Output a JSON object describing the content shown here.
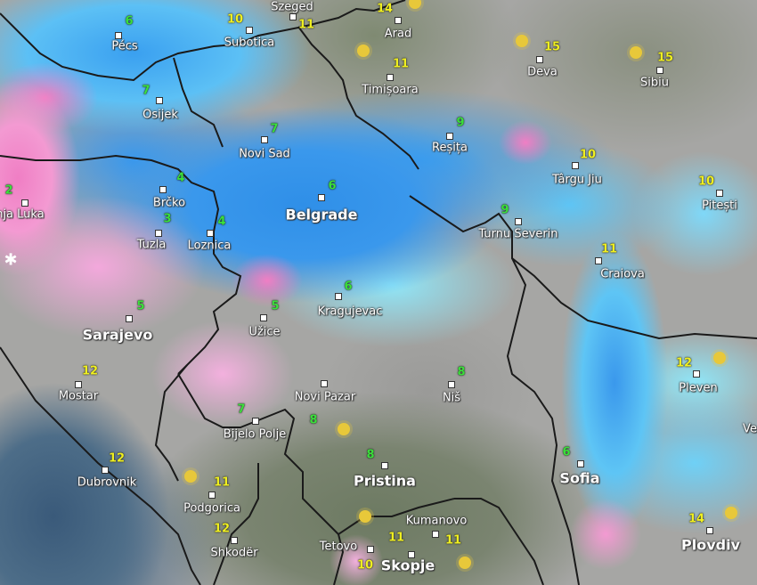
{
  "map": {
    "type": "weather radar / temperature map"
  },
  "cities": [
    {
      "name": "Pécs",
      "temp": "6"
    },
    {
      "name": "Subotica",
      "temp": "10"
    },
    {
      "name": "Szeged",
      "temp": "11"
    },
    {
      "name": "Arad",
      "temp": "14"
    },
    {
      "name": "Timișoara",
      "temp": "11"
    },
    {
      "name": "Deva",
      "temp": "15"
    },
    {
      "name": "Sibiu",
      "temp": "15"
    },
    {
      "name": "Osijek",
      "temp": "7"
    },
    {
      "name": "Novi Sad",
      "temp": "7"
    },
    {
      "name": "Reșița",
      "temp": "9"
    },
    {
      "name": "Târgu Jiu",
      "temp": "10"
    },
    {
      "name": "Pitești",
      "temp": "10"
    },
    {
      "name": "Brčko",
      "temp": "4"
    },
    {
      "name": "Banja Luka",
      "temp": "2"
    },
    {
      "name": "Belgrade",
      "temp": "6"
    },
    {
      "name": "Turnu Severin",
      "temp": "9"
    },
    {
      "name": "Tuzla",
      "temp": "3"
    },
    {
      "name": "Loznica",
      "temp": "4"
    },
    {
      "name": "Craiova",
      "temp": "11"
    },
    {
      "name": "Sarajevo",
      "temp": "5"
    },
    {
      "name": "Užice",
      "temp": "5"
    },
    {
      "name": "Kragujevac",
      "temp": "6"
    },
    {
      "name": "Mostar",
      "temp": "12"
    },
    {
      "name": "Pleven",
      "temp": "12"
    },
    {
      "name": "Niš",
      "temp": "8"
    },
    {
      "name": "Novi Pazar",
      "temp": "8"
    },
    {
      "name": "Bijelo Polje",
      "temp": "7"
    },
    {
      "name": "Dubrovnik",
      "temp": "12"
    },
    {
      "name": "Podgorica",
      "temp": "11"
    },
    {
      "name": "Pristina",
      "temp": "8"
    },
    {
      "name": "Sofia",
      "temp": "6"
    },
    {
      "name": "Shkodër",
      "temp": "12"
    },
    {
      "name": "Kumanovo",
      "temp": "11"
    },
    {
      "name": "Tetovo",
      "temp": "11"
    },
    {
      "name": "Skopje",
      "temp": "10"
    },
    {
      "name": "Plovdiv",
      "temp": "14"
    },
    {
      "name": "Ve",
      "temp": ""
    }
  ],
  "colors": {
    "rain": "#3a98ec",
    "light_rain": "#8fe6f8",
    "snow": "#f07ec4",
    "temp_cold": "#3be03b",
    "temp_warm": "#f0f020"
  },
  "icons": [
    "sun-icon",
    "snowflake-icon"
  ]
}
